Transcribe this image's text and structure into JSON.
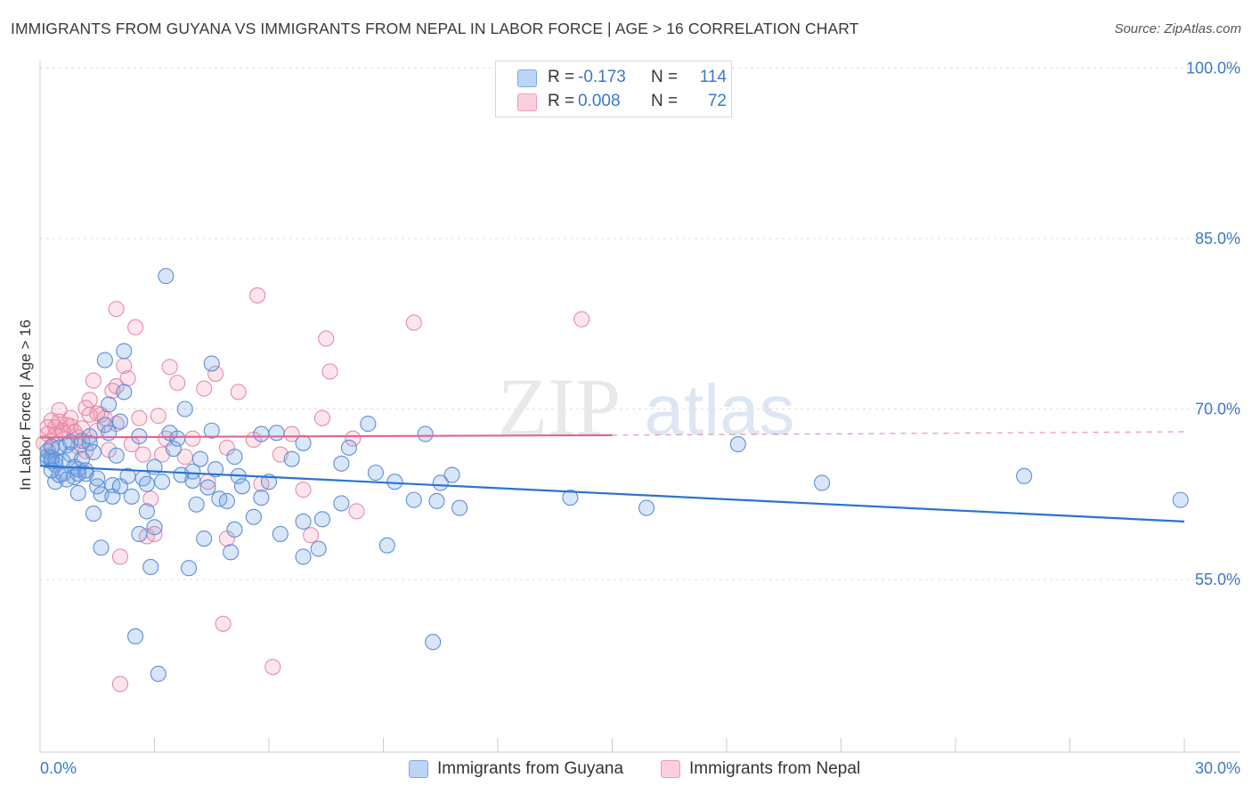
{
  "header": {
    "title": "IMMIGRANTS FROM GUYANA VS IMMIGRANTS FROM NEPAL IN LABOR FORCE | AGE > 16 CORRELATION CHART",
    "source": "Source: ZipAtlas.com"
  },
  "watermark": {
    "zip": "ZIP",
    "atlas": "atlas"
  },
  "stats_legend": {
    "rows": [
      {
        "r_label": "R =",
        "r_value": "-0.173",
        "n_label": "N =",
        "n_value": "114",
        "color": "#a9c8f0"
      },
      {
        "r_label": "R =",
        "r_value": "0.008",
        "n_label": "N =",
        "n_value": "72",
        "color": "#f6b5c8"
      }
    ]
  },
  "colors": {
    "guyana_fill": "rgba(120,165,230,0.28)",
    "guyana_stroke": "#5b8fd6",
    "guyana_line": "#2b72d0",
    "nepal_fill": "rgba(240,140,170,0.22)",
    "nepal_stroke": "#e88aa8",
    "nepal_line": "#e0668f",
    "tick_label": "#3a78c9",
    "grid": "#dddddd"
  },
  "chart_data": {
    "type": "scatter",
    "title": "IMMIGRANTS FROM GUYANA VS IMMIGRANTS FROM NEPAL IN LABOR FORCE | AGE > 16 CORRELATION CHART",
    "xlabel": "",
    "ylabel": "In Labor Force | Age > 16",
    "xlim": [
      0,
      30
    ],
    "ylim": [
      40,
      102
    ],
    "x_tick_labels": [
      "0.0%",
      "30.0%"
    ],
    "y_ticks": [
      55,
      70,
      85,
      100
    ],
    "y_tick_labels": [
      "55.0%",
      "70.0%",
      "85.0%",
      "100.0%"
    ],
    "grid": true,
    "legend_position": "bottom-center",
    "series": [
      {
        "name": "Immigrants from Guyana",
        "r": -0.173,
        "n": 114,
        "trend": {
          "x": [
            0,
            30
          ],
          "y": [
            65.0,
            60.1
          ]
        },
        "points": [
          [
            0.2,
            66.3
          ],
          [
            0.2,
            65.8
          ],
          [
            0.2,
            65.5
          ],
          [
            0.3,
            65.4
          ],
          [
            0.3,
            66.7
          ],
          [
            0.3,
            65.7
          ],
          [
            0.4,
            65.1
          ],
          [
            0.4,
            65.5
          ],
          [
            0.4,
            63.6
          ],
          [
            0.5,
            66.6
          ],
          [
            0.5,
            64.2
          ],
          [
            0.6,
            65.4
          ],
          [
            0.6,
            64.3
          ],
          [
            0.7,
            66.8
          ],
          [
            0.7,
            63.8
          ],
          [
            0.8,
            67.1
          ],
          [
            0.8,
            66.0
          ],
          [
            0.9,
            64.9
          ],
          [
            0.9,
            64.0
          ],
          [
            1.0,
            62.6
          ],
          [
            1.0,
            64.7
          ],
          [
            1.1,
            65.6
          ],
          [
            1.1,
            67.2
          ],
          [
            1.2,
            64.6
          ],
          [
            1.2,
            64.3
          ],
          [
            1.3,
            67.0
          ],
          [
            1.3,
            67.6
          ],
          [
            1.4,
            60.8
          ],
          [
            1.4,
            66.2
          ],
          [
            1.5,
            63.2
          ],
          [
            1.5,
            63.9
          ],
          [
            1.6,
            62.5
          ],
          [
            1.6,
            57.8
          ],
          [
            1.7,
            74.3
          ],
          [
            1.7,
            68.6
          ],
          [
            1.8,
            67.9
          ],
          [
            1.8,
            70.4
          ],
          [
            1.9,
            63.3
          ],
          [
            1.9,
            62.3
          ],
          [
            2.0,
            65.9
          ],
          [
            2.1,
            63.2
          ],
          [
            2.1,
            68.9
          ],
          [
            2.2,
            75.1
          ],
          [
            2.2,
            71.5
          ],
          [
            2.3,
            64.1
          ],
          [
            2.4,
            62.3
          ],
          [
            2.5,
            50.0
          ],
          [
            2.6,
            59.0
          ],
          [
            2.7,
            63.9
          ],
          [
            2.8,
            63.4
          ],
          [
            2.8,
            61.0
          ],
          [
            2.9,
            56.1
          ],
          [
            3.0,
            64.9
          ],
          [
            3.0,
            59.6
          ],
          [
            3.1,
            46.7
          ],
          [
            3.2,
            63.6
          ],
          [
            3.3,
            81.7
          ],
          [
            3.4,
            67.9
          ],
          [
            3.5,
            66.5
          ],
          [
            3.6,
            67.4
          ],
          [
            3.7,
            64.2
          ],
          [
            3.8,
            70.0
          ],
          [
            3.9,
            56.0
          ],
          [
            4.0,
            63.7
          ],
          [
            4.0,
            64.5
          ],
          [
            4.1,
            61.6
          ],
          [
            4.2,
            65.6
          ],
          [
            4.3,
            58.6
          ],
          [
            4.4,
            63.1
          ],
          [
            4.5,
            68.1
          ],
          [
            4.5,
            74.0
          ],
          [
            4.6,
            64.7
          ],
          [
            4.7,
            62.1
          ],
          [
            4.9,
            61.9
          ],
          [
            5.0,
            57.4
          ],
          [
            5.1,
            59.4
          ],
          [
            5.1,
            65.8
          ],
          [
            5.2,
            64.1
          ],
          [
            5.3,
            63.2
          ],
          [
            5.6,
            60.5
          ],
          [
            5.8,
            62.2
          ],
          [
            5.8,
            67.8
          ],
          [
            6.0,
            63.6
          ],
          [
            6.2,
            67.9
          ],
          [
            6.3,
            59.0
          ],
          [
            6.6,
            65.6
          ],
          [
            6.9,
            57.0
          ],
          [
            6.9,
            60.1
          ],
          [
            6.9,
            67.0
          ],
          [
            7.3,
            57.7
          ],
          [
            7.4,
            60.3
          ],
          [
            7.9,
            61.7
          ],
          [
            7.9,
            65.2
          ],
          [
            8.1,
            66.6
          ],
          [
            8.6,
            68.7
          ],
          [
            8.8,
            64.4
          ],
          [
            9.1,
            58.0
          ],
          [
            9.3,
            63.6
          ],
          [
            9.8,
            62.0
          ],
          [
            10.1,
            67.8
          ],
          [
            10.3,
            49.5
          ],
          [
            10.4,
            61.9
          ],
          [
            10.5,
            63.5
          ],
          [
            10.8,
            64.2
          ],
          [
            11.0,
            61.3
          ],
          [
            13.9,
            62.2
          ],
          [
            15.9,
            61.3
          ],
          [
            18.3,
            66.9
          ],
          [
            20.5,
            63.5
          ],
          [
            25.8,
            64.1
          ],
          [
            29.9,
            62.0
          ],
          [
            0.3,
            64.6
          ],
          [
            1.0,
            64.3
          ],
          [
            2.6,
            67.6
          ]
        ]
      },
      {
        "name": "Immigrants from Nepal",
        "r": 0.008,
        "n": 72,
        "trend": {
          "x": [
            0,
            15
          ],
          "y": [
            67.5,
            67.7
          ]
        },
        "trend_dashed": {
          "x": [
            15,
            30
          ],
          "y": [
            67.7,
            68.0
          ]
        },
        "points": [
          [
            0.1,
            67.0
          ],
          [
            0.2,
            67.8
          ],
          [
            0.2,
            68.4
          ],
          [
            0.3,
            66.5
          ],
          [
            0.3,
            69.0
          ],
          [
            0.4,
            68.4
          ],
          [
            0.4,
            67.7
          ],
          [
            0.5,
            69.9
          ],
          [
            0.5,
            68.9
          ],
          [
            0.6,
            68.1
          ],
          [
            0.6,
            67.9
          ],
          [
            0.7,
            68.6
          ],
          [
            0.8,
            68.5
          ],
          [
            0.8,
            69.2
          ],
          [
            0.9,
            68.0
          ],
          [
            1.0,
            67.5
          ],
          [
            1.0,
            66.7
          ],
          [
            1.1,
            68.3
          ],
          [
            1.2,
            66.3
          ],
          [
            1.2,
            70.1
          ],
          [
            1.3,
            69.5
          ],
          [
            1.3,
            70.8
          ],
          [
            1.4,
            72.5
          ],
          [
            1.5,
            68.1
          ],
          [
            1.5,
            69.6
          ],
          [
            1.6,
            69.5
          ],
          [
            1.7,
            69.2
          ],
          [
            1.8,
            66.4
          ],
          [
            1.9,
            71.6
          ],
          [
            2.0,
            72.0
          ],
          [
            2.0,
            78.8
          ],
          [
            2.0,
            68.7
          ],
          [
            2.1,
            57.0
          ],
          [
            2.1,
            45.8
          ],
          [
            2.2,
            73.8
          ],
          [
            2.3,
            72.7
          ],
          [
            2.4,
            66.9
          ],
          [
            2.5,
            77.2
          ],
          [
            2.6,
            69.2
          ],
          [
            2.7,
            66.0
          ],
          [
            2.8,
            58.8
          ],
          [
            2.9,
            62.1
          ],
          [
            3.0,
            59.0
          ],
          [
            3.1,
            69.4
          ],
          [
            3.2,
            66.0
          ],
          [
            3.3,
            67.4
          ],
          [
            3.4,
            73.7
          ],
          [
            3.6,
            72.3
          ],
          [
            3.8,
            65.8
          ],
          [
            4.0,
            67.4
          ],
          [
            4.3,
            71.8
          ],
          [
            4.4,
            63.6
          ],
          [
            4.6,
            73.1
          ],
          [
            4.8,
            51.1
          ],
          [
            4.9,
            58.6
          ],
          [
            4.9,
            66.6
          ],
          [
            5.2,
            71.5
          ],
          [
            5.6,
            67.3
          ],
          [
            5.7,
            80.0
          ],
          [
            5.8,
            63.4
          ],
          [
            6.1,
            47.3
          ],
          [
            6.3,
            66.0
          ],
          [
            6.6,
            67.8
          ],
          [
            6.9,
            62.9
          ],
          [
            7.1,
            58.9
          ],
          [
            7.4,
            69.2
          ],
          [
            7.5,
            76.2
          ],
          [
            7.6,
            73.3
          ],
          [
            8.2,
            67.4
          ],
          [
            8.3,
            61.0
          ],
          [
            9.8,
            77.6
          ],
          [
            14.2,
            77.9
          ]
        ]
      }
    ]
  }
}
